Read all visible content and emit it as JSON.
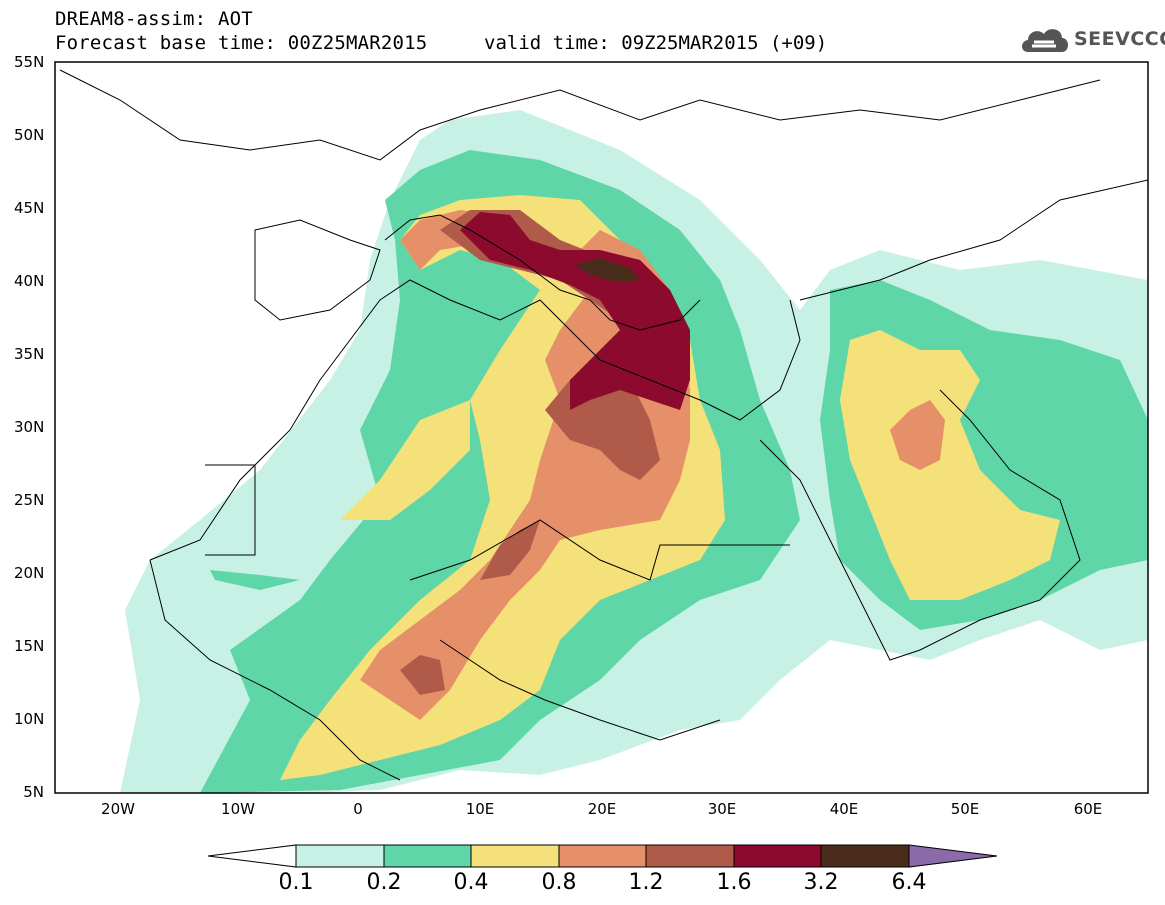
{
  "header": {
    "title": "DREAM8-assim: AOT",
    "base_time": "Forecast base time: 00Z25MAR2015",
    "valid_time": "valid time: 09Z25MAR2015 (+09)"
  },
  "logo": {
    "text": "SEEVCCC",
    "icon": "cloud-logo-icon",
    "color": "#555555"
  },
  "map": {
    "region": "North Africa, Mediterranean and Middle East",
    "lat_labels": [
      "55N",
      "50N",
      "45N",
      "40N",
      "35N",
      "30N",
      "25N",
      "20N",
      "15N",
      "10N",
      "5N"
    ],
    "lon_labels": [
      "20W",
      "10W",
      "0",
      "10E",
      "20E",
      "30E",
      "40E",
      "50E",
      "60E"
    ],
    "lat_range": [
      5,
      55
    ],
    "lon_range": [
      -25,
      65
    ]
  },
  "colorbar": {
    "labels": [
      "0.1",
      "0.2",
      "0.4",
      "0.8",
      "1.2",
      "1.6",
      "3.2",
      "6.4"
    ],
    "colors": [
      "#ffffff",
      "#c8f1e6",
      "#5ed6a8",
      "#f5e17a",
      "#e6906a",
      "#b05a4a",
      "#8b0a2e",
      "#4a2c1a",
      "#8a6aa8"
    ]
  },
  "chart_data": {
    "type": "heatmap",
    "variable": "AOT",
    "levels": [
      0.1,
      0.2,
      0.4,
      0.8,
      1.2,
      1.6,
      3.2,
      6.4
    ],
    "colors": {
      "0.1": "#c8f1e6",
      "0.2": "#5ed6a8",
      "0.4": "#f5e17a",
      "0.8": "#e6906a",
      "1.2": "#b05a4a",
      "1.6": "#8b0a2e",
      "3.2": "#4a2c1a",
      "6.4": "#8a6aa8"
    },
    "xlim": [
      -25,
      65
    ],
    "ylim": [
      5,
      55
    ]
  }
}
